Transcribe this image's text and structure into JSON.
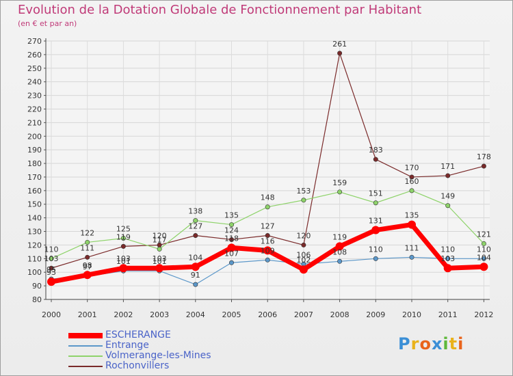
{
  "page": {
    "title": "Evolution de la Dotation Globale de Fonctionnement par Habitant",
    "subtitle": "(en € et par an)"
  },
  "logo": {
    "text": "Proxiti",
    "letters": [
      {
        "ch": "P",
        "color": "#3b8fd6"
      },
      {
        "ch": "r",
        "color": "#e9b21b"
      },
      {
        "ch": "o",
        "color": "#e9641b"
      },
      {
        "ch": "x",
        "color": "#3b8fd6"
      },
      {
        "ch": "i",
        "color": "#5db83a"
      },
      {
        "ch": "t",
        "color": "#e9b21b"
      },
      {
        "ch": "i",
        "color": "#e9641b"
      }
    ]
  },
  "chart_data": {
    "type": "line",
    "title": "Evolution de la Dotation Globale de Fonctionnement par Habitant",
    "ylabel": "(en € et par an)",
    "xlabel": "",
    "ylim": [
      80,
      270
    ],
    "ytick_step": 10,
    "grid": true,
    "categories": [
      "2000",
      "2001",
      "2002",
      "2003",
      "2004",
      "2005",
      "2006",
      "2007",
      "2008",
      "2009",
      "2010",
      "2011",
      "2012"
    ],
    "series": [
      {
        "name": "ESCHERANGE",
        "color": "#ff0000",
        "values": [
          93,
          98,
          103,
          103,
          104,
          118,
          116,
          102,
          119,
          131,
          135,
          103,
          104
        ],
        "labels": [
          "93",
          "98",
          "103",
          "103",
          "104",
          "118",
          "116",
          "102",
          "119",
          "131",
          "135",
          "103",
          "104"
        ]
      },
      {
        "name": "Entrange",
        "color": "#5b97c9",
        "values": [
          95,
          97,
          101,
          101,
          91,
          107,
          109,
          106,
          108,
          110,
          111,
          110,
          110
        ],
        "labels": [
          "95",
          "97",
          "101",
          "101",
          "91",
          "107",
          "109",
          "106",
          "108",
          "110",
          "111",
          "110",
          "110"
        ]
      },
      {
        "name": "Volmerange-les-Mines",
        "color": "#8ed36a",
        "values": [
          110,
          122,
          125,
          117,
          138,
          135,
          148,
          153,
          159,
          151,
          160,
          149,
          121
        ],
        "labels": [
          "110",
          "122",
          "125",
          "117",
          "138",
          "135",
          "148",
          "153",
          "159",
          "151",
          "160",
          "149",
          "121"
        ]
      },
      {
        "name": "Rochonvillers",
        "color": "#7a2a2a",
        "values": [
          103,
          111,
          119,
          120,
          127,
          124,
          127,
          120,
          261,
          183,
          170,
          171,
          178
        ],
        "labels": [
          "103",
          "111",
          "119",
          "120",
          "127",
          "124",
          "127",
          "120",
          "261",
          "183",
          "170",
          "171",
          "178"
        ]
      }
    ]
  }
}
